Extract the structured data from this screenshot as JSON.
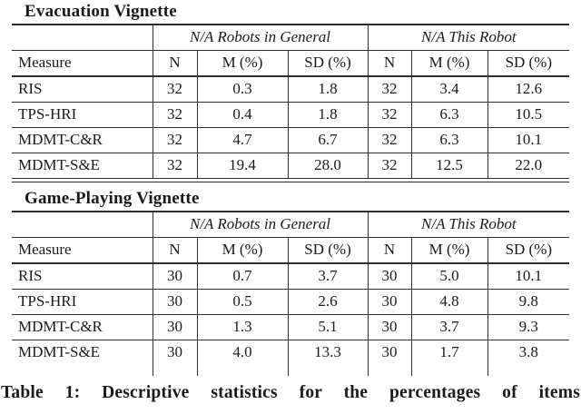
{
  "sections": [
    {
      "title": "Evacuation Vignette",
      "group_headers": [
        "N/A Robots in General",
        "N/A This Robot"
      ],
      "columns": [
        "Measure",
        "N",
        "M (%)",
        "SD (%)",
        "N",
        "M (%)",
        "SD (%)"
      ],
      "rows": [
        [
          "RIS",
          "32",
          "0.3",
          "1.8",
          "32",
          "3.4",
          "12.6"
        ],
        [
          "TPS-HRI",
          "32",
          "0.4",
          "1.8",
          "32",
          "6.3",
          "10.5"
        ],
        [
          "MDMT-C&R",
          "32",
          "4.7",
          "6.7",
          "32",
          "6.3",
          "10.1"
        ],
        [
          "MDMT-S&E",
          "32",
          "19.4",
          "28.0",
          "32",
          "12.5",
          "22.0"
        ]
      ]
    },
    {
      "title": "Game-Playing Vignette",
      "group_headers": [
        "N/A Robots in General",
        "N/A This Robot"
      ],
      "columns": [
        "Measure",
        "N",
        "M (%)",
        "SD (%)",
        "N",
        "M (%)",
        "SD (%)"
      ],
      "rows": [
        [
          "RIS",
          "30",
          "0.7",
          "3.7",
          "30",
          "5.0",
          "10.1"
        ],
        [
          "TPS-HRI",
          "30",
          "0.5",
          "2.6",
          "30",
          "4.8",
          "9.8"
        ],
        [
          "MDMT-C&R",
          "30",
          "1.3",
          "5.1",
          "30",
          "3.7",
          "9.3"
        ],
        [
          "MDMT-S&E",
          "30",
          "4.0",
          "13.3",
          "30",
          "1.7",
          "3.8"
        ]
      ]
    }
  ],
  "caption": "Table 1: Descriptive statistics for the percentages of items",
  "colors": {
    "text": "#1a1a1a",
    "rule": "#2e2e2e",
    "background": "#ffffff"
  }
}
